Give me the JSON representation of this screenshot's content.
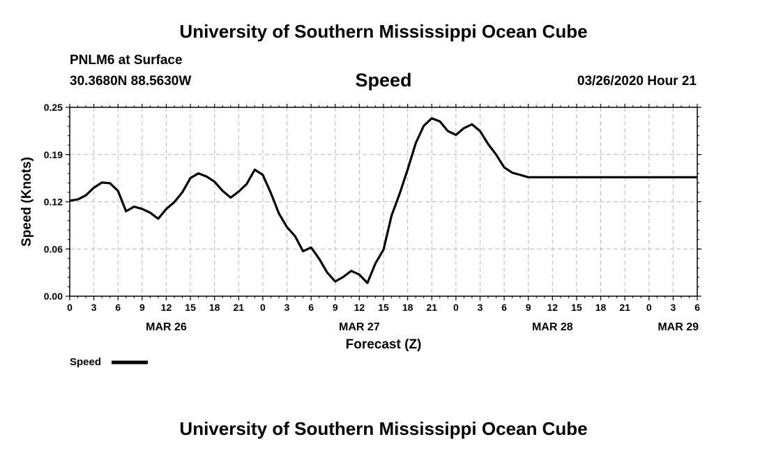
{
  "header": {
    "title": "University of Southern Mississippi Ocean Cube",
    "station": "PNLM6 at Surface",
    "coordinates": "30.3680N 88.5630W",
    "parameter": "Speed",
    "datetime": "03/26/2020 Hour 21"
  },
  "footer": {
    "title": "University of Southern Mississippi Ocean Cube"
  },
  "chart_data": {
    "type": "line",
    "title": "Speed",
    "xlabel": "Forecast (Z)",
    "ylabel": "Speed (Knots)",
    "ylim": [
      0.0,
      0.25
    ],
    "yticks": [
      "0.00",
      "0.06",
      "0.12",
      "0.19",
      "0.25"
    ],
    "ytick_values": [
      0.0,
      0.0625,
      0.125,
      0.1875,
      0.25
    ],
    "xlim_hours": [
      0,
      78
    ],
    "xtick_labels": [
      "0",
      "3",
      "6",
      "9",
      "12",
      "15",
      "18",
      "21",
      "0",
      "3",
      "6",
      "9",
      "12",
      "15",
      "18",
      "21",
      "0",
      "3",
      "6",
      "9",
      "12",
      "15",
      "18",
      "21",
      "0",
      "3",
      "6"
    ],
    "date_labels": [
      {
        "label": "MAR 26",
        "hour": 12
      },
      {
        "label": "MAR 27",
        "hour": 36
      },
      {
        "label": "MAR 28",
        "hour": 60
      },
      {
        "label": "MAR 29",
        "hour": 78
      }
    ],
    "grid": true,
    "legend": {
      "label": "Speed",
      "placement": "bottom-left"
    },
    "series": [
      {
        "name": "Speed",
        "color": "#000000",
        "x": [
          0,
          1,
          2,
          3,
          4,
          5,
          6,
          7,
          8,
          9,
          10,
          11,
          12,
          13,
          14,
          15,
          16,
          17,
          18,
          19,
          20,
          21,
          22,
          23,
          24,
          25,
          26,
          27,
          28,
          29,
          30,
          31,
          32,
          33,
          34,
          35,
          36,
          37,
          38,
          39,
          40,
          41,
          42,
          43,
          44,
          45,
          46,
          47,
          48,
          49,
          50,
          51,
          52,
          53,
          54,
          55,
          56,
          57,
          58,
          59,
          60,
          61,
          62,
          63,
          64,
          65,
          66,
          67,
          68,
          69,
          70,
          71,
          72,
          73,
          74,
          75,
          76,
          77,
          78
        ],
        "values": [
          0.1265,
          0.128,
          0.1335,
          0.1435,
          0.1505,
          0.1495,
          0.1395,
          0.1125,
          0.1185,
          0.1155,
          0.1105,
          0.1025,
          0.1155,
          0.1245,
          0.1375,
          0.1565,
          0.1625,
          0.1585,
          0.1515,
          0.1395,
          0.1305,
          0.1385,
          0.1485,
          0.1675,
          0.1605,
          0.1365,
          0.1095,
          0.0915,
          0.0795,
          0.0595,
          0.0645,
          0.0495,
          0.0315,
          0.0195,
          0.0255,
          0.0335,
          0.0285,
          0.0175,
          0.0435,
          0.0615,
          0.1065,
          0.1355,
          0.1675,
          0.2025,
          0.2255,
          0.2355,
          0.2315,
          0.2185,
          0.2135,
          0.2225,
          0.2275,
          0.2185,
          0.2015,
          0.1875,
          0.1705,
          0.1635,
          0.1605,
          0.1575,
          0.1575,
          0.1575,
          0.1575,
          0.1575,
          0.1575,
          0.1575,
          0.1575,
          0.1575,
          0.1575,
          0.1575,
          0.1575,
          0.1575,
          0.1575,
          0.1575,
          0.1575,
          0.1575,
          0.1575,
          0.1575,
          0.1575,
          0.1575,
          0.1575
        ]
      }
    ]
  }
}
